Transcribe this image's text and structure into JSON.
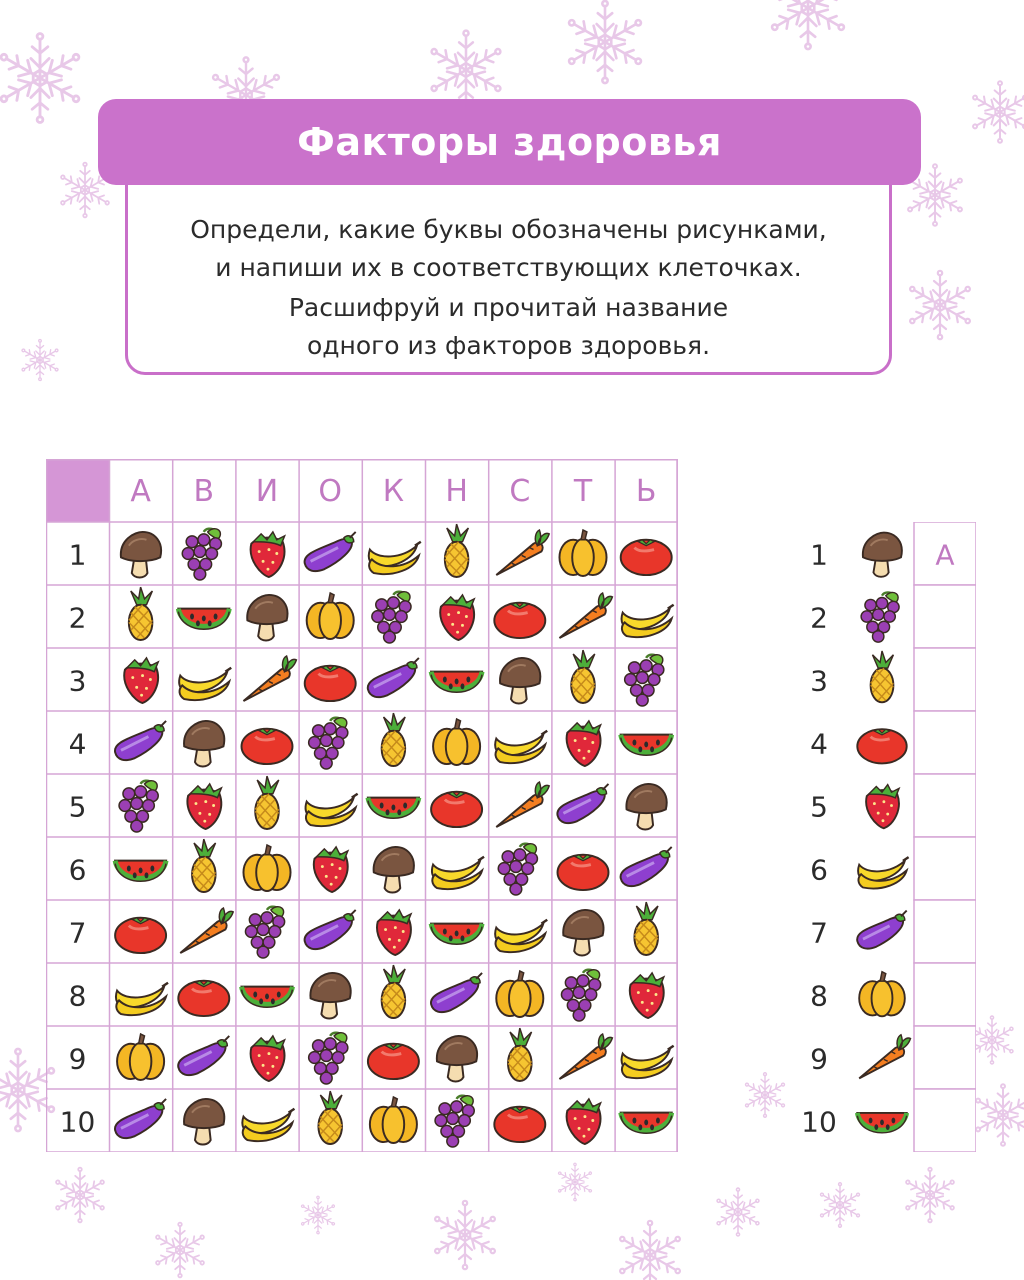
{
  "colors": {
    "accent": "#ca72cb",
    "accent_light": "#d596d6",
    "grid_line": "#d5a5d5",
    "text_dark": "#2b2b2b",
    "snowflake": "#e8c8e8"
  },
  "title": "Факторы здоровья",
  "instructions": {
    "line1": "Определи, какие буквы обозначены рисунками,",
    "line2": "и напиши их в соответствующих клеточках.",
    "line3": "Расшифруй и прочитай название",
    "line4": "одного из факторов здоровья."
  },
  "grid": {
    "column_letters": [
      "А",
      "В",
      "И",
      "О",
      "К",
      "Н",
      "С",
      "Т",
      "Ь"
    ],
    "row_numbers": [
      "1",
      "2",
      "3",
      "4",
      "5",
      "6",
      "7",
      "8",
      "9",
      "10"
    ],
    "rows": [
      [
        "mushroom-icon",
        "grapes-icon",
        "strawberry-icon",
        "eggplant-icon",
        "banana-icon",
        "pineapple-icon",
        "carrot-icon",
        "pumpkin-icon",
        "tomato-icon"
      ],
      [
        "pineapple-icon",
        "watermelon-icon",
        "mushroom-icon",
        "pumpkin-icon",
        "grapes-icon",
        "strawberry-icon",
        "tomato-icon",
        "carrot-icon",
        "banana-icon"
      ],
      [
        "strawberry-icon",
        "banana-icon",
        "carrot-icon",
        "tomato-icon",
        "eggplant-icon",
        "watermelon-icon",
        "mushroom-icon",
        "pineapple-icon",
        "grapes-icon"
      ],
      [
        "eggplant-icon",
        "mushroom-icon",
        "tomato-icon",
        "grapes-icon",
        "pineapple-icon",
        "pumpkin-icon",
        "banana-icon",
        "strawberry-icon",
        "watermelon-icon"
      ],
      [
        "grapes-icon",
        "strawberry-icon",
        "pineapple-icon",
        "banana-icon",
        "watermelon-icon",
        "tomato-icon",
        "carrot-icon",
        "eggplant-icon",
        "mushroom-icon"
      ],
      [
        "watermelon-icon",
        "pineapple-icon",
        "pumpkin-icon",
        "strawberry-icon",
        "mushroom-icon",
        "banana-icon",
        "grapes-icon",
        "tomato-icon",
        "eggplant-icon"
      ],
      [
        "tomato-icon",
        "carrot-icon",
        "grapes-icon",
        "eggplant-icon",
        "strawberry-icon",
        "watermelon-icon",
        "banana-icon",
        "mushroom-icon",
        "pineapple-icon"
      ],
      [
        "banana-icon",
        "tomato-icon",
        "watermelon-icon",
        "mushroom-icon",
        "pineapple-icon",
        "eggplant-icon",
        "pumpkin-icon",
        "grapes-icon",
        "strawberry-icon"
      ],
      [
        "pumpkin-icon",
        "eggplant-icon",
        "strawberry-icon",
        "grapes-icon",
        "tomato-icon",
        "mushroom-icon",
        "pineapple-icon",
        "carrot-icon",
        "banana-icon"
      ],
      [
        "eggplant-icon",
        "mushroom-icon",
        "banana-icon",
        "pineapple-icon",
        "pumpkin-icon",
        "grapes-icon",
        "tomato-icon",
        "strawberry-icon",
        "watermelon-icon"
      ]
    ]
  },
  "answer": {
    "items": [
      {
        "number": "1",
        "icon": "mushroom-icon",
        "letter": "А"
      },
      {
        "number": "2",
        "icon": "grapes-icon",
        "letter": ""
      },
      {
        "number": "3",
        "icon": "pineapple-icon",
        "letter": ""
      },
      {
        "number": "4",
        "icon": "tomato-icon",
        "letter": ""
      },
      {
        "number": "5",
        "icon": "strawberry-icon",
        "letter": ""
      },
      {
        "number": "6",
        "icon": "banana-icon",
        "letter": ""
      },
      {
        "number": "7",
        "icon": "eggplant-icon",
        "letter": ""
      },
      {
        "number": "8",
        "icon": "pumpkin-icon",
        "letter": ""
      },
      {
        "number": "9",
        "icon": "carrot-icon",
        "letter": ""
      },
      {
        "number": "10",
        "icon": "watermelon-icon",
        "letter": ""
      }
    ]
  }
}
